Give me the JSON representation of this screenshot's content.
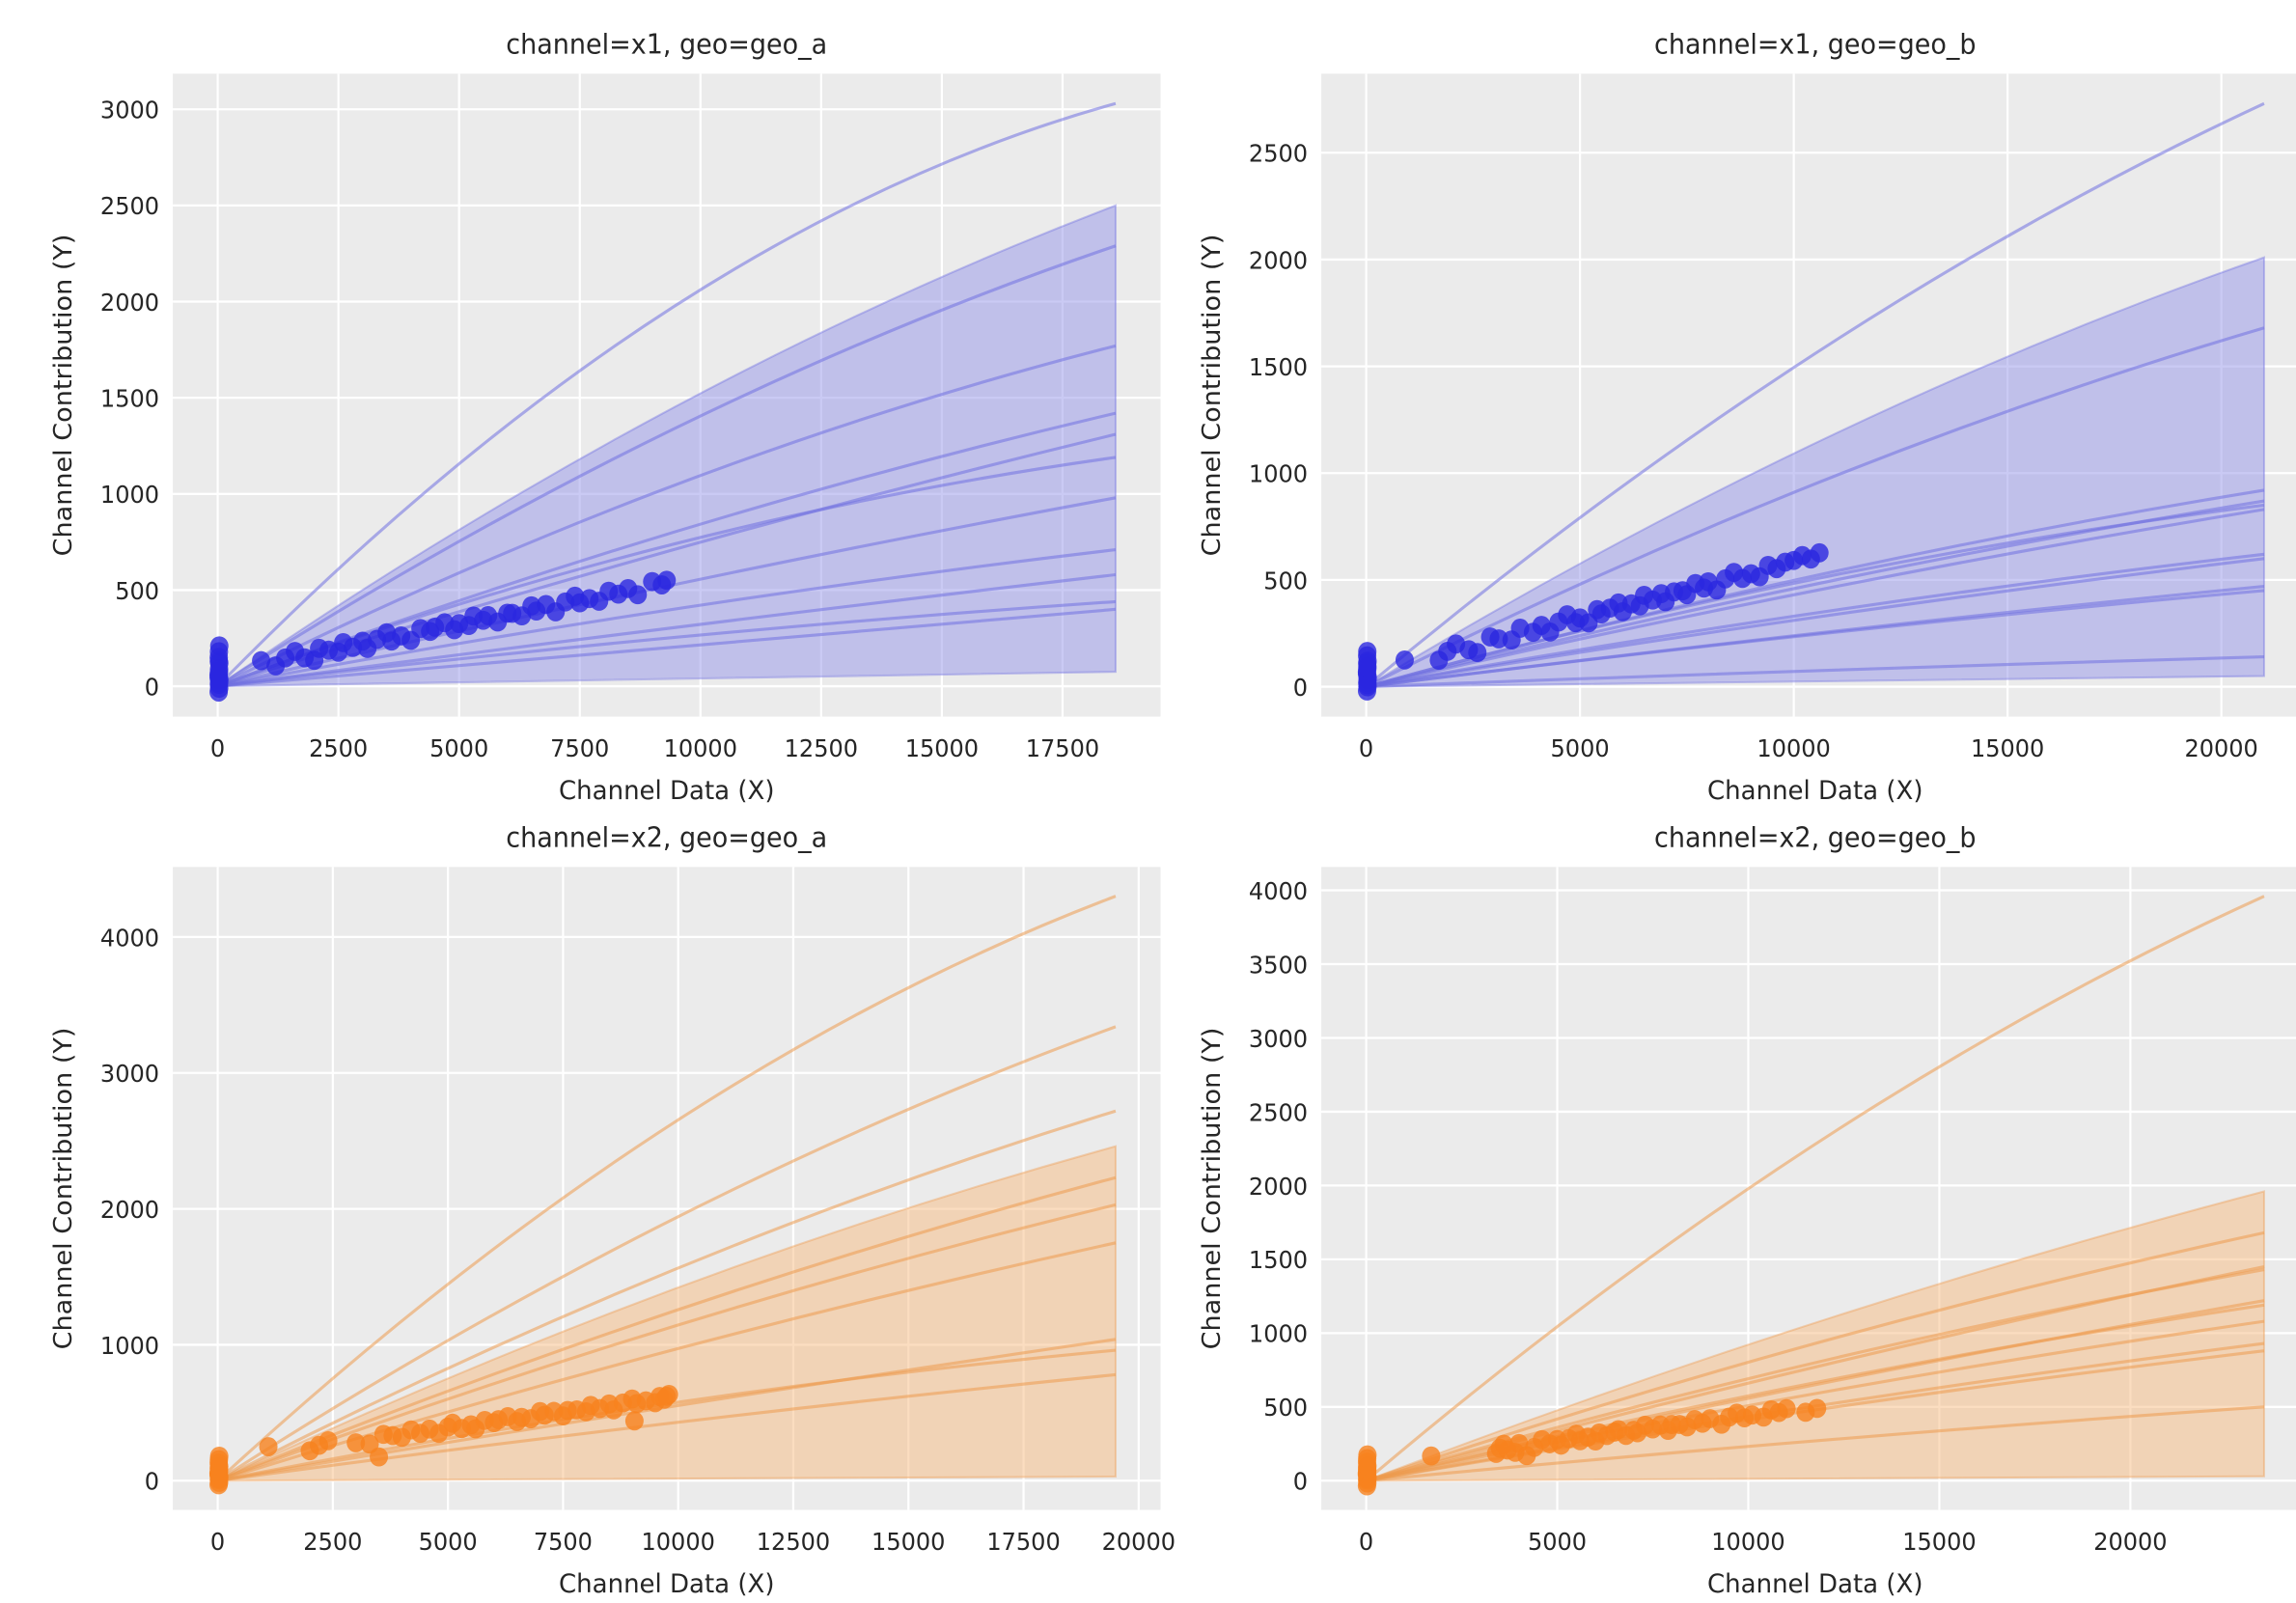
{
  "figure": {
    "background": "#ffffff",
    "axes_background": "#ebebeb",
    "grid_color": "#ffffff",
    "text_color": "#262626",
    "xlabel": "Channel Data (X)",
    "ylabel": "Channel Contribution (Y)"
  },
  "chart_data": [
    {
      "type": "scatter",
      "title": "channel=x1, geo=geo_a",
      "xlabel": "Channel Data (X)",
      "ylabel": "Channel Contribution (Y)",
      "grid": true,
      "legend": false,
      "colors": {
        "scatter": "#2b27e0",
        "curve": "#6f6fe0",
        "band": "#9595ea"
      },
      "xlim": [
        -930,
        19530
      ],
      "ylim": [
        -158,
        3185
      ],
      "xticks": [
        0,
        2500,
        5000,
        7500,
        10000,
        12500,
        15000,
        17500
      ],
      "yticks": [
        0,
        500,
        1000,
        1500,
        2000,
        2500,
        3000
      ],
      "x_end": 18600,
      "band": {
        "upper_mid": 1430,
        "upper_end": 2500,
        "lower_mid": 40,
        "lower_end": 75
      },
      "curves": [
        {
          "mid": 1950,
          "end": 3030
        },
        {
          "mid": 1320,
          "end": 2290
        },
        {
          "mid": 1030,
          "end": 1770
        },
        {
          "mid": 790,
          "end": 1420
        },
        {
          "mid": 700,
          "end": 1310
        },
        {
          "mid": 730,
          "end": 1190
        },
        {
          "mid": 520,
          "end": 980
        },
        {
          "mid": 395,
          "end": 710
        },
        {
          "mid": 300,
          "end": 580
        },
        {
          "mid": 250,
          "end": 440
        },
        {
          "mid": 205,
          "end": 400
        }
      ],
      "scatter": {
        "x": [
          20,
          30,
          25,
          35,
          18,
          28,
          32,
          22,
          26,
          33,
          19,
          27,
          24,
          30,
          900,
          1200,
          1400,
          1600,
          1800,
          2000,
          2100,
          2300,
          2500,
          2600,
          2800,
          3000,
          3100,
          3300,
          3500,
          3600,
          3800,
          4000,
          4200,
          4400,
          4500,
          4700,
          4900,
          5000,
          5200,
          5300,
          5500,
          5600,
          5800,
          6000,
          6100,
          6300,
          6500,
          6600,
          6800,
          7000,
          7200,
          7400,
          7500,
          7700,
          7900,
          8100,
          8300,
          8500,
          8700,
          9000,
          9200,
          9300
        ],
        "y": [
          -30,
          -10,
          10,
          35,
          60,
          90,
          120,
          150,
          180,
          210,
          45,
          75,
          130,
          20,
          133,
          106,
          147,
          181,
          148,
          135,
          197,
          188,
          177,
          227,
          202,
          234,
          197,
          244,
          278,
          235,
          262,
          239,
          300,
          285,
          307,
          330,
          294,
          326,
          316,
          365,
          343,
          367,
          334,
          380,
          379,
          366,
          418,
          391,
          425,
          387,
          438,
          468,
          434,
          456,
          442,
          494,
          479,
          508,
          476,
          544,
          527,
          551
        ]
      }
    },
    {
      "type": "scatter",
      "title": "channel=x1, geo=geo_b",
      "xlabel": "Channel Data (X)",
      "ylabel": "Channel Contribution (Y)",
      "grid": true,
      "legend": false,
      "colors": {
        "scatter": "#2b27e0",
        "curve": "#6f6fe0",
        "band": "#9595ea"
      },
      "xlim": [
        -1050,
        22050
      ],
      "ylim": [
        -140,
        2870
      ],
      "xticks": [
        0,
        5000,
        10000,
        15000,
        20000
      ],
      "yticks": [
        0,
        500,
        1000,
        1500,
        2000,
        2500
      ],
      "x_end": 21000,
      "band": {
        "upper_mid": 1140,
        "upper_end": 2010,
        "lower_mid": 26,
        "lower_end": 50
      },
      "curves": [
        {
          "mid": 1560,
          "end": 2730
        },
        {
          "mid": 950,
          "end": 1680
        },
        {
          "mid": 520,
          "end": 920
        },
        {
          "mid": 480,
          "end": 870
        },
        {
          "mid": 505,
          "end": 850
        },
        {
          "mid": 450,
          "end": 830
        },
        {
          "mid": 345,
          "end": 620
        },
        {
          "mid": 325,
          "end": 600
        },
        {
          "mid": 250,
          "end": 470
        },
        {
          "mid": 245,
          "end": 450
        },
        {
          "mid": 75,
          "end": 140
        }
      ],
      "scatter": {
        "x": [
          20,
          30,
          25,
          35,
          18,
          28,
          32,
          22,
          26,
          33,
          19,
          27,
          24,
          30,
          900,
          1700,
          1900,
          2100,
          2400,
          2600,
          2900,
          3100,
          3400,
          3600,
          3900,
          4100,
          4300,
          4500,
          4700,
          4900,
          5000,
          5200,
          5400,
          5500,
          5700,
          5900,
          6000,
          6200,
          6400,
          6500,
          6700,
          6900,
          7000,
          7200,
          7400,
          7500,
          7700,
          7900,
          8000,
          8200,
          8400,
          8600,
          8800,
          9000,
          9200,
          9400,
          9600,
          9800,
          10000,
          10200,
          10400,
          10600
        ],
        "y": [
          -20,
          0,
          20,
          45,
          70,
          95,
          120,
          145,
          165,
          35,
          60,
          85,
          110,
          10,
          125,
          124,
          166,
          200,
          173,
          160,
          233,
          224,
          219,
          274,
          255,
          287,
          256,
          303,
          337,
          300,
          322,
          299,
          361,
          341,
          368,
          392,
          351,
          388,
          379,
          428,
          406,
          436,
          398,
          444,
          449,
          431,
          483,
          462,
          491,
          453,
          505,
          535,
          507,
          529,
          515,
          568,
          553,
          583,
          591,
          614,
          598,
          627
        ]
      }
    },
    {
      "type": "scatter",
      "title": "channel=x2, geo=geo_a",
      "xlabel": "Channel Data (X)",
      "ylabel": "Channel Contribution (Y)",
      "grid": true,
      "legend": false,
      "colors": {
        "scatter": "#f8821e",
        "curve": "#ed9b4f",
        "band": "#f7bb81"
      },
      "xlim": [
        -975,
        20475
      ],
      "ylim": [
        -215,
        4515
      ],
      "xticks": [
        0,
        2500,
        5000,
        7500,
        10000,
        12500,
        15000,
        17500,
        20000
      ],
      "yticks": [
        0,
        1000,
        2000,
        3000,
        4000
      ],
      "x_end": 19500,
      "band": {
        "upper_mid": 1390,
        "upper_end": 2460,
        "lower_mid": 15,
        "lower_end": 30
      },
      "curves": [
        {
          "mid": 2600,
          "end": 4300
        },
        {
          "mid": 1900,
          "end": 3340
        },
        {
          "mid": 1530,
          "end": 2720
        },
        {
          "mid": 1230,
          "end": 2230
        },
        {
          "mid": 1120,
          "end": 2030
        },
        {
          "mid": 950,
          "end": 1750
        },
        {
          "mid": 540,
          "end": 1040
        },
        {
          "mid": 565,
          "end": 960
        },
        {
          "mid": 420,
          "end": 780
        }
      ],
      "scatter": {
        "x": [
          20,
          30,
          25,
          35,
          18,
          28,
          32,
          22,
          26,
          33,
          19,
          27,
          24,
          30,
          1100,
          2000,
          2200,
          2400,
          3000,
          3300,
          3500,
          3600,
          3800,
          4000,
          4200,
          4400,
          4600,
          4800,
          5000,
          5100,
          5300,
          5500,
          5600,
          5800,
          6000,
          6100,
          6300,
          6500,
          6600,
          6800,
          7000,
          7100,
          7300,
          7500,
          7600,
          7800,
          8000,
          8100,
          8300,
          8500,
          8600,
          8800,
          9000,
          9050,
          9100,
          9300,
          9500,
          9600,
          9700,
          9750,
          9800
        ],
        "y": [
          -30,
          -12,
          8,
          30,
          55,
          80,
          105,
          130,
          155,
          180,
          42,
          68,
          92,
          18,
          250,
          220,
          260,
          294,
          279,
          270,
          175,
          341,
          332,
          320,
          374,
          349,
          380,
          348,
          394,
          423,
          384,
          411,
          382,
          443,
          427,
          449,
          471,
          435,
          466,
          456,
          509,
          482,
          510,
          477,
          517,
          521,
          507,
          554,
          531,
          565,
          521,
          572,
          601,
          440,
          567,
          588,
          574,
          620,
          600,
          621,
          635
        ]
      }
    },
    {
      "type": "scatter",
      "title": "channel=x2, geo=geo_b",
      "xlabel": "Channel Data (X)",
      "ylabel": "Channel Contribution (Y)",
      "grid": true,
      "legend": false,
      "colors": {
        "scatter": "#f8821e",
        "curve": "#ed9b4f",
        "band": "#f7bb81"
      },
      "xlim": [
        -1175,
        24675
      ],
      "ylim": [
        -198,
        4158
      ],
      "xticks": [
        0,
        5000,
        10000,
        15000,
        20000
      ],
      "yticks": [
        0,
        500,
        1000,
        1500,
        2000,
        2500,
        3000,
        3500,
        4000
      ],
      "x_end": 23500,
      "band": {
        "upper_mid": 1070,
        "upper_end": 1960,
        "lower_mid": 15,
        "lower_end": 30
      },
      "curves": [
        {
          "mid": 2280,
          "end": 3960
        },
        {
          "mid": 930,
          "end": 1680
        },
        {
          "mid": 770,
          "end": 1450
        },
        {
          "mid": 800,
          "end": 1430
        },
        {
          "mid": 650,
          "end": 1220
        },
        {
          "mid": 665,
          "end": 1190
        },
        {
          "mid": 590,
          "end": 1080
        },
        {
          "mid": 505,
          "end": 930
        },
        {
          "mid": 480,
          "end": 880
        },
        {
          "mid": 270,
          "end": 500
        }
      ],
      "scatter": {
        "x": [
          20,
          30,
          25,
          35,
          18,
          28,
          32,
          22,
          26,
          33,
          19,
          27,
          24,
          30,
          1700,
          3400,
          3500,
          3600,
          3700,
          3900,
          4000,
          4200,
          4400,
          4600,
          4800,
          5000,
          5100,
          5300,
          5500,
          5600,
          5800,
          6000,
          6100,
          6300,
          6500,
          6600,
          6800,
          7000,
          7100,
          7300,
          7500,
          7700,
          7900,
          8000,
          8200,
          8400,
          8600,
          8800,
          9000,
          9300,
          9500,
          9700,
          9900,
          10100,
          10400,
          10600,
          10800,
          11000,
          11500,
          11800
        ],
        "y": [
          -35,
          -15,
          5,
          25,
          50,
          75,
          100,
          125,
          150,
          175,
          40,
          65,
          90,
          15,
          168,
          185,
          220,
          247,
          208,
          192,
          252,
          170,
          226,
          278,
          250,
          279,
          241,
          285,
          316,
          271,
          295,
          269,
          324,
          306,
          330,
          346,
          307,
          341,
          325,
          376,
          351,
          377,
          341,
          380,
          381,
          365,
          414,
          389,
          420,
          383,
          431,
          458,
          426,
          445,
          431,
          480,
          462,
          488,
          464,
          490
        ]
      }
    }
  ]
}
